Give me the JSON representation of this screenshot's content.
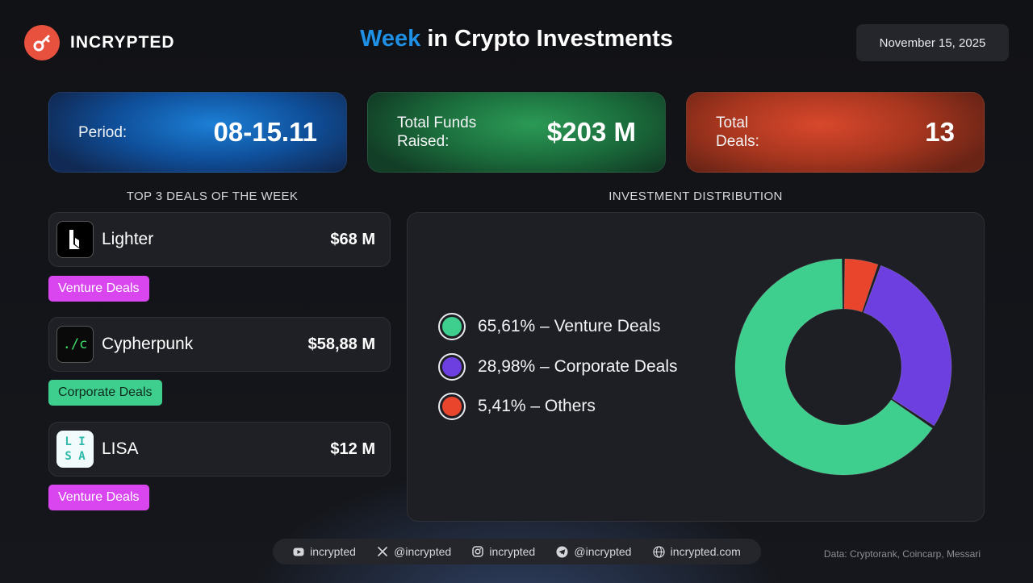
{
  "header": {
    "brand": "INCRYPTED",
    "title_accent": "Week",
    "title_rest": " in Crypto Investments",
    "date": "November 15, 2025"
  },
  "stats": {
    "period_label": "Period:",
    "period_value": "08-15.11",
    "funds_label": "Total Funds\nRaised:",
    "funds_value": "$203 M",
    "deals_label": "Total\nDeals:",
    "deals_value": "13"
  },
  "sections": {
    "top_deals": "TOP 3 DEALS OF THE WEEK",
    "distribution": "INVESTMENT DISTRIBUTION"
  },
  "deals": [
    {
      "name": "Lighter",
      "amount": "$68 M",
      "tag": "Venture Deals",
      "tag_color": "#d946ef",
      "logo": "lighter-logo"
    },
    {
      "name": "Cypherpunk",
      "amount": "$58,88 M",
      "tag": "Corporate Deals",
      "tag_color": "#3ecf8e",
      "logo": "cypherpunk-logo",
      "logo_text": "./c"
    },
    {
      "name": "LISA",
      "amount": "$12 M",
      "tag": "Venture Deals",
      "tag_color": "#d946ef",
      "logo": "lisa-logo",
      "logo_text": "L I\nS A"
    }
  ],
  "chart_data": {
    "type": "pie",
    "categories": [
      "Venture Deals",
      "Corporate Deals",
      "Others"
    ],
    "values": [
      65.61,
      28.98,
      5.41
    ],
    "labels": [
      "65,61% – Venture Deals",
      "28,98% – Corporate Deals",
      "5,41% – Others"
    ],
    "colors": [
      "#3ecf8e",
      "#6d3fe0",
      "#e8452c"
    ],
    "legend": "left",
    "donut": true
  },
  "footer": {
    "social": [
      {
        "icon": "youtube-icon",
        "label": "incrypted"
      },
      {
        "icon": "x-icon",
        "label": "@incrypted"
      },
      {
        "icon": "instagram-icon",
        "label": "incrypted"
      },
      {
        "icon": "telegram-icon",
        "label": "@incrypted"
      },
      {
        "icon": "globe-icon",
        "label": "incrypted.com"
      }
    ],
    "source": "Data: Cryptorank, Coincarp, Messari"
  }
}
